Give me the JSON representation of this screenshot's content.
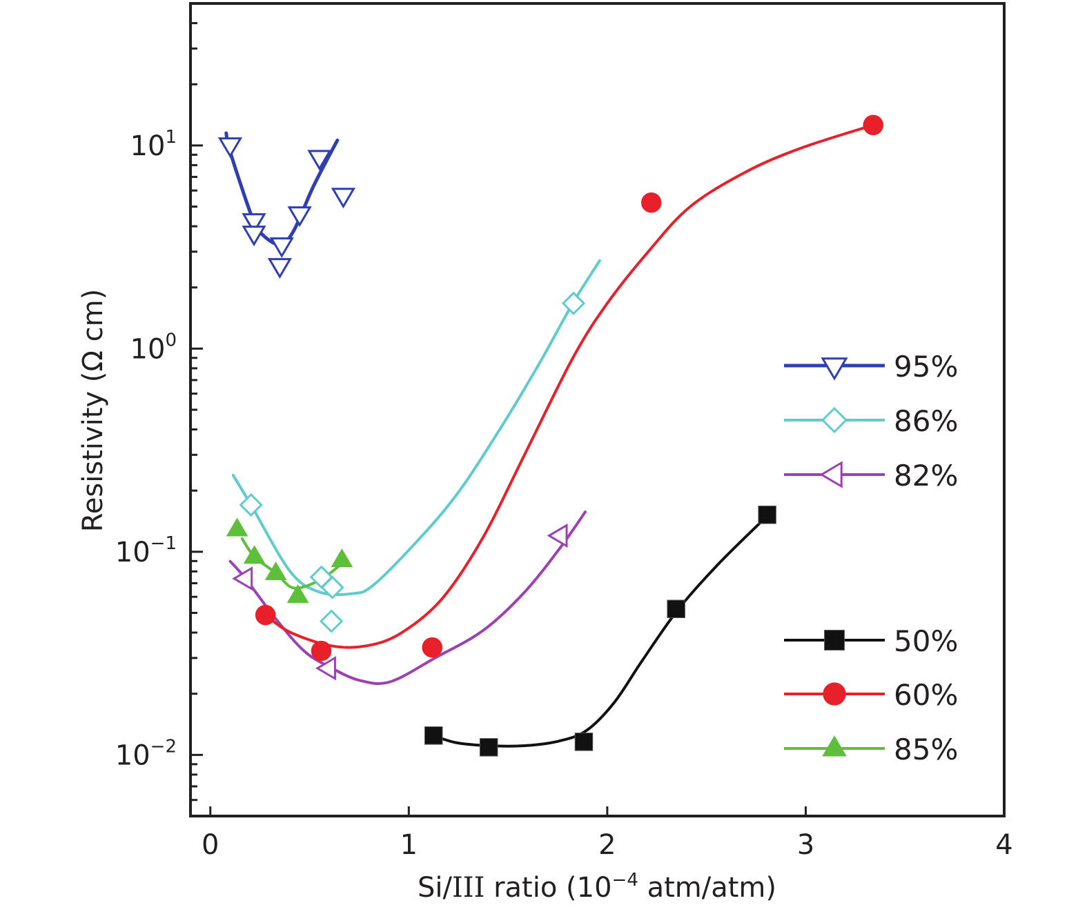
{
  "chart_data": {
    "type": "scatter",
    "title": "",
    "xlabel": "Si/III ratio (10⁻⁴ atm/atm)",
    "xlabel_parts": {
      "prefix": "Si/",
      "roman": "III",
      "middle": " ratio (10",
      "sup": "−4",
      "suffix": " atm/atm)"
    },
    "ylabel": "Resistivity (Ω cm)",
    "xlim": [
      -0.1,
      4
    ],
    "ylim": [
      0.005,
      50
    ],
    "yscale": "log",
    "grid": false,
    "x_ticks": [
      {
        "value": 0,
        "label": "0"
      },
      {
        "value": 1,
        "label": "1"
      },
      {
        "value": 2,
        "label": "2"
      },
      {
        "value": 3,
        "label": "3"
      },
      {
        "value": 4,
        "label": "4"
      }
    ],
    "y_ticks": [
      {
        "value": 0.01,
        "base": "10",
        "exp": "−2"
      },
      {
        "value": 0.1,
        "base": "10",
        "exp": "−1"
      },
      {
        "value": 1,
        "base": "10",
        "exp": "0"
      },
      {
        "value": 10,
        "base": "10",
        "exp": "1"
      }
    ],
    "legend_position": "right",
    "legend_groups": [
      [
        "95%",
        "86%",
        "82%"
      ],
      [
        "50%",
        "60%",
        "85%"
      ]
    ],
    "series": [
      {
        "name": "95%",
        "color": "#2f3fb0",
        "marker": "triangle-down",
        "filled": false,
        "points": [
          [
            0.1,
            10.1
          ],
          [
            0.22,
            4.27
          ],
          [
            0.22,
            3.71
          ],
          [
            0.36,
            3.25
          ],
          [
            0.35,
            2.57
          ],
          [
            0.45,
            4.62
          ],
          [
            0.55,
            8.75
          ],
          [
            0.67,
            5.7
          ]
        ],
        "fit": [
          [
            0.08,
            11.5
          ],
          [
            0.1,
            9.3
          ],
          [
            0.21,
            4.44
          ],
          [
            0.26,
            3.66
          ],
          [
            0.35,
            3.25
          ],
          [
            0.42,
            3.8
          ],
          [
            0.52,
            6.31
          ],
          [
            0.64,
            10.6
          ]
        ]
      },
      {
        "name": "86%",
        "color": "#5ecbcd",
        "marker": "diamond",
        "filled": false,
        "points": [
          [
            0.205,
            0.17
          ],
          [
            0.56,
            0.075
          ],
          [
            0.615,
            0.0667
          ],
          [
            0.61,
            0.0455
          ],
          [
            1.83,
            1.67
          ]
        ],
        "fit": [
          [
            0.115,
            0.238
          ],
          [
            0.205,
            0.17
          ],
          [
            0.403,
            0.0798
          ],
          [
            0.552,
            0.0632
          ],
          [
            0.715,
            0.0622
          ],
          [
            0.819,
            0.0682
          ],
          [
            1.028,
            0.109
          ],
          [
            1.236,
            0.188
          ],
          [
            1.444,
            0.38
          ],
          [
            1.653,
            0.829
          ],
          [
            1.826,
            1.67
          ],
          [
            1.962,
            2.71
          ]
        ]
      },
      {
        "name": "82%",
        "color": "#9c40b3",
        "marker": "triangle-left",
        "filled": false,
        "points": [
          [
            0.177,
            0.0738
          ],
          [
            0.597,
            0.0267
          ],
          [
            1.764,
            0.12
          ]
        ],
        "fit": [
          [
            0.1,
            0.0897
          ],
          [
            0.177,
            0.0738
          ],
          [
            0.333,
            0.0463
          ],
          [
            0.472,
            0.0325
          ],
          [
            0.597,
            0.0272
          ],
          [
            0.75,
            0.0233
          ],
          [
            0.906,
            0.0229
          ],
          [
            1.132,
            0.03
          ],
          [
            1.375,
            0.041
          ],
          [
            1.583,
            0.0632
          ],
          [
            1.764,
            0.105
          ],
          [
            1.889,
            0.157
          ]
        ]
      },
      {
        "name": "50%",
        "color": "#111111",
        "marker": "square",
        "filled": true,
        "points": [
          [
            1.125,
            0.01245
          ],
          [
            1.403,
            0.0109
          ],
          [
            1.882,
            0.0116
          ],
          [
            2.347,
            0.0523
          ],
          [
            2.806,
            0.152
          ]
        ],
        "fit": [
          [
            1.125,
            0.01245
          ],
          [
            1.236,
            0.0115
          ],
          [
            1.403,
            0.0111
          ],
          [
            1.583,
            0.0111
          ],
          [
            1.757,
            0.0117
          ],
          [
            1.896,
            0.0132
          ],
          [
            2.035,
            0.0181
          ],
          [
            2.174,
            0.0289
          ],
          [
            2.354,
            0.0515
          ],
          [
            2.556,
            0.0862
          ],
          [
            2.806,
            0.15
          ]
        ]
      },
      {
        "name": "60%",
        "color": "#e8202a",
        "marker": "circle",
        "filled": true,
        "points": [
          [
            0.278,
            0.0488
          ],
          [
            0.559,
            0.0325
          ],
          [
            1.118,
            0.0338
          ],
          [
            2.222,
            5.23
          ],
          [
            3.34,
            12.6
          ]
        ],
        "fit": [
          [
            0.278,
            0.0488
          ],
          [
            0.403,
            0.0401
          ],
          [
            0.611,
            0.0344
          ],
          [
            0.785,
            0.0344
          ],
          [
            0.958,
            0.0396
          ],
          [
            1.167,
            0.0586
          ],
          [
            1.375,
            0.118
          ],
          [
            1.583,
            0.3
          ],
          [
            1.826,
            0.897
          ],
          [
            2.0,
            1.67
          ],
          [
            2.208,
            3.01
          ],
          [
            2.417,
            4.99
          ],
          [
            2.694,
            7.37
          ],
          [
            2.972,
            9.67
          ],
          [
            3.34,
            12.6
          ]
        ]
      },
      {
        "name": "85%",
        "color": "#5dbf3a",
        "marker": "triangle-up",
        "filled": true,
        "points": [
          [
            0.135,
            0.129
          ],
          [
            0.222,
            0.0946
          ],
          [
            0.33,
            0.0785
          ],
          [
            0.441,
            0.0607
          ],
          [
            0.663,
            0.091
          ]
        ],
        "fit": [
          [
            0.16,
            0.116
          ],
          [
            0.222,
            0.0946
          ],
          [
            0.33,
            0.0785
          ],
          [
            0.403,
            0.0672
          ],
          [
            0.472,
            0.0672
          ],
          [
            0.576,
            0.075
          ],
          [
            0.663,
            0.0876
          ]
        ]
      }
    ]
  }
}
